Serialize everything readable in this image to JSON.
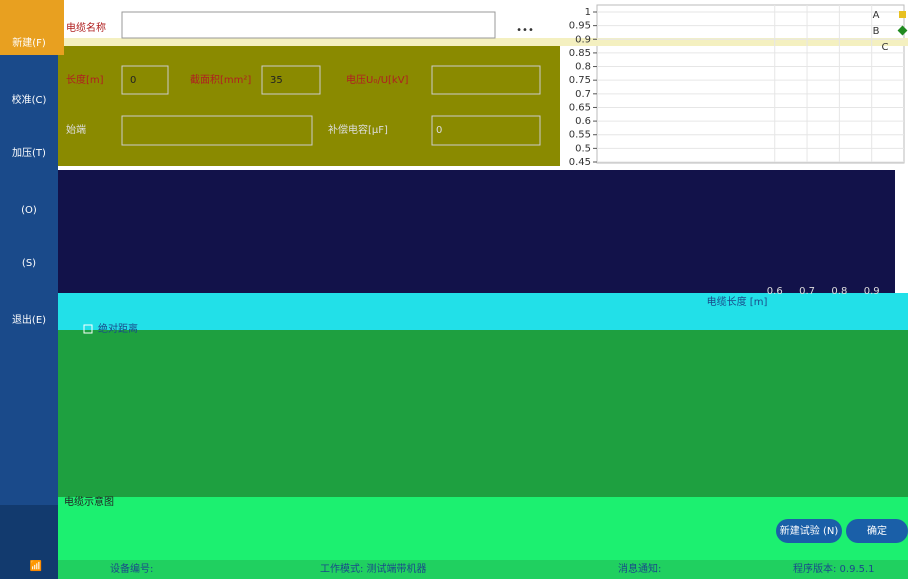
{
  "sidebar": {
    "items": [
      "新建(F)",
      "校准(C)",
      "加压(T)",
      "(O)",
      "(S)",
      "退出(E)"
    ]
  },
  "form": {
    "name_label": "电缆名称",
    "more": "•••",
    "length_label": "长度[m]",
    "length_value": "0",
    "area_label": "截面积[mm²]",
    "area_value": "35",
    "voltage_label": "电压U₀/U[kV]",
    "terminal_label": "始端",
    "capacitance_label": "补偿电容[μF]",
    "capacitance_value": "0",
    "absolute_label": "绝对距离",
    "diagram_label": "电缆示意图"
  },
  "buttons": [
    "新建试验 (N)",
    "确定"
  ],
  "status": [
    "设备编号:",
    "工作模式: 测试端带机器",
    "消息通知:",
    "程序版本: 0.9.5.1"
  ],
  "chart_data": {
    "type": "line",
    "xlabel": "电缆长度 [m]",
    "ylim": [
      0.45,
      1
    ],
    "yticks": [
      1,
      0.95,
      0.9,
      0.85,
      0.8,
      0.75,
      0.7,
      0.65,
      0.6,
      0.55,
      0.5,
      0.45
    ],
    "xlim": [
      0.05,
      1
    ],
    "xticks": [
      0.6,
      0.7,
      0.8,
      0.9
    ],
    "grid": true,
    "series": [
      {
        "name": "A",
        "color": "#e8c020"
      },
      {
        "name": "B",
        "color": "#208a20"
      },
      {
        "name": "C"
      }
    ]
  }
}
